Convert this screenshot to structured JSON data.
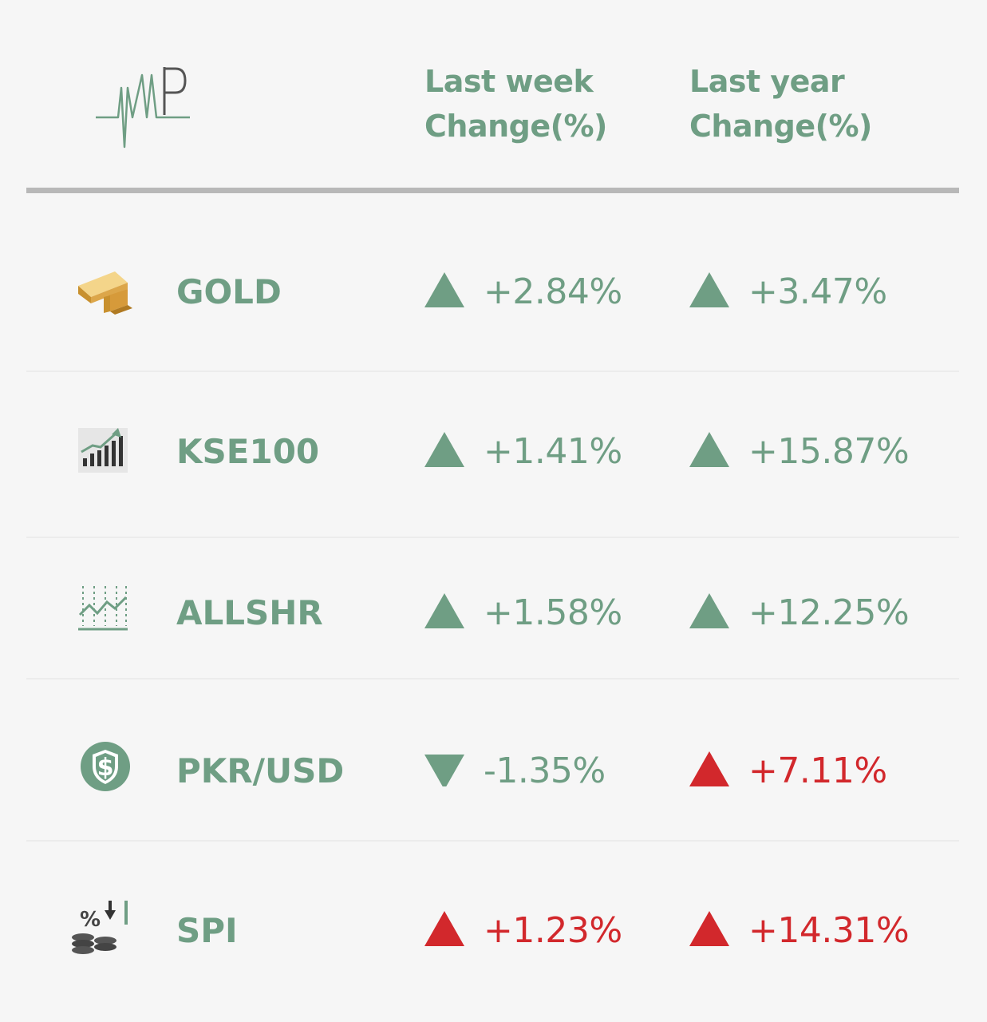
{
  "header": {
    "logo_icon": "amp-logo-icon",
    "week_line1": "Last week",
    "week_line2": "Change(%)",
    "year_line1": "Last year",
    "year_line2": "Change(%)"
  },
  "colors": {
    "accent": "#6f9e84",
    "negative": "#d2282c",
    "rule": "#b8b8b8"
  },
  "rows": [
    {
      "name": "GOLD",
      "icon": "gold-bar-icon",
      "week": "+2.84%",
      "week_dir": "up",
      "week_color": "green",
      "year": "+3.47%",
      "year_dir": "up",
      "year_color": "green"
    },
    {
      "name": "KSE100",
      "icon": "bar-chart-growth-icon",
      "week": "+1.41%",
      "week_dir": "up",
      "week_color": "green",
      "year": "+15.87%",
      "year_dir": "up",
      "year_color": "green"
    },
    {
      "name": "ALLSHR",
      "icon": "line-chart-icon",
      "week": "+1.58%",
      "week_dir": "up",
      "week_color": "green",
      "year": "+12.25%",
      "year_dir": "up",
      "year_color": "green"
    },
    {
      "name": "PKR/USD",
      "icon": "dollar-coin-icon",
      "week": "-1.35%",
      "week_dir": "down",
      "week_color": "green",
      "year": "+7.11%",
      "year_dir": "up",
      "year_color": "red"
    },
    {
      "name": "SPI",
      "icon": "coins-percent-icon",
      "week": "+1.23%",
      "week_dir": "up",
      "week_color": "red",
      "year": "+14.31%",
      "year_dir": "up",
      "year_color": "red"
    }
  ]
}
